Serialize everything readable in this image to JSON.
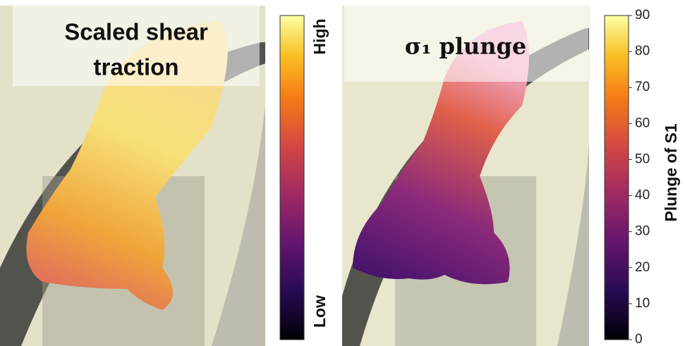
{
  "left_panel": {
    "title_lines": [
      "Scaled shear",
      "traction"
    ],
    "colorbar": {
      "high_label": "High",
      "low_label": "Low"
    }
  },
  "right_panel": {
    "title": "σ₁ plunge",
    "colorbar": {
      "label": "Plunge of S1",
      "ylim": [
        0,
        90
      ],
      "yticks": [
        0,
        10,
        20,
        30,
        40,
        50,
        60,
        70,
        80,
        90
      ]
    }
  }
}
